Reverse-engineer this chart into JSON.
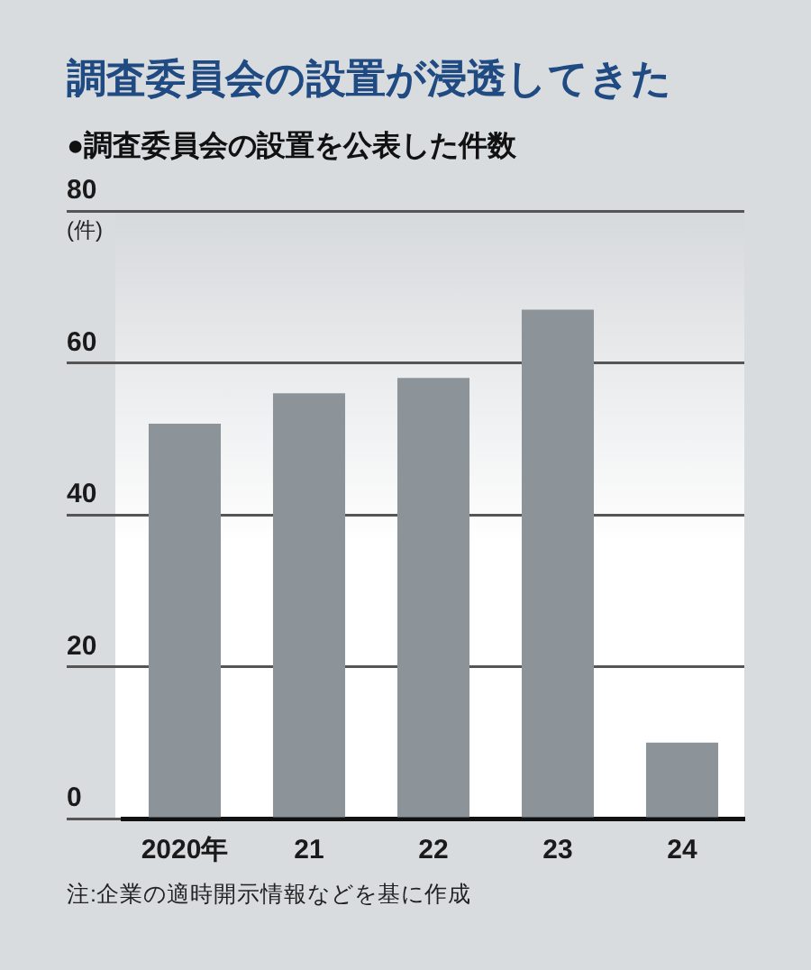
{
  "chart_data": {
    "type": "bar",
    "title": "調査委員会の設置が浸透してきた",
    "subtitle": "●調査委員会の設置を公表した件数",
    "ylabel": "(件)",
    "annotations": [
      "注:企業の適時開示情報などを基に作成"
    ],
    "categories": [
      "2020年",
      "21",
      "22",
      "23",
      "24"
    ],
    "values": [
      52,
      56,
      58,
      67,
      10
    ],
    "color": "#8c9399",
    "ylim": [
      0,
      80
    ],
    "yticks": [
      0,
      20,
      40,
      60,
      80
    ],
    "grid": "y"
  }
}
